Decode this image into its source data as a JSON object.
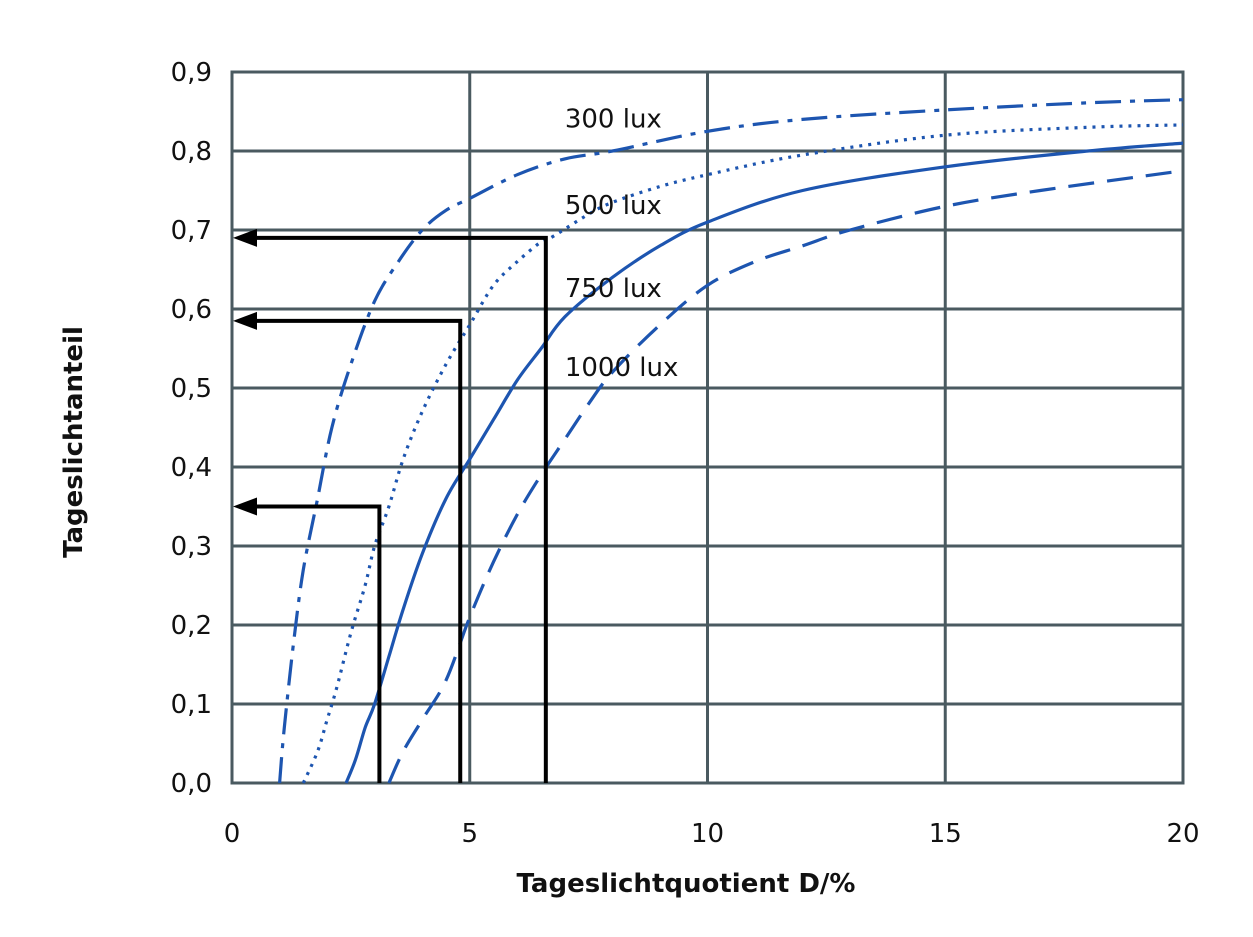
{
  "chart_data": {
    "type": "line",
    "title": "",
    "xlabel": "Tageslichtquotient D/%",
    "ylabel": "Tageslichtanteil",
    "xlim": [
      0,
      20
    ],
    "ylim": [
      0,
      0.9
    ],
    "x_ticks": [
      {
        "value": 0,
        "label": "0"
      },
      {
        "value": 5,
        "label": "5"
      },
      {
        "value": 10,
        "label": "10"
      },
      {
        "value": 15,
        "label": "15"
      },
      {
        "value": 20,
        "label": "20"
      }
    ],
    "y_ticks": [
      {
        "value": 0.0,
        "label": "0,0"
      },
      {
        "value": 0.1,
        "label": "0,1"
      },
      {
        "value": 0.2,
        "label": "0,2"
      },
      {
        "value": 0.3,
        "label": "0,3"
      },
      {
        "value": 0.4,
        "label": "0,4"
      },
      {
        "value": 0.5,
        "label": "0,5"
      },
      {
        "value": 0.6,
        "label": "0,6"
      },
      {
        "value": 0.7,
        "label": "0,7"
      },
      {
        "value": 0.8,
        "label": "0,8"
      },
      {
        "value": 0.9,
        "label": "0,9"
      }
    ],
    "grid": true,
    "series": [
      {
        "name": "300 lux",
        "style": "dashdot",
        "color": "#1d55b0",
        "label_at": [
          7,
          0.83
        ],
        "x": [
          1.0,
          1.1,
          1.3,
          1.5,
          1.8,
          2.1,
          2.5,
          3.0,
          3.5,
          4.0,
          4.5,
          5.0,
          6.0,
          7.0,
          8.0,
          10.0,
          12.0,
          15.0,
          18.0,
          20.0
        ],
        "y": [
          0.0,
          0.07,
          0.18,
          0.27,
          0.36,
          0.45,
          0.53,
          0.61,
          0.66,
          0.7,
          0.725,
          0.74,
          0.77,
          0.79,
          0.8,
          0.825,
          0.84,
          0.852,
          0.861,
          0.865
        ]
      },
      {
        "name": "500 lux",
        "style": "dotted",
        "color": "#1d55b0",
        "label_at": [
          7,
          0.72
        ],
        "x": [
          1.5,
          1.8,
          2.0,
          2.2,
          2.5,
          2.8,
          3.0,
          3.3,
          3.6,
          4.0,
          4.5,
          5.0,
          5.5,
          6.0,
          6.5,
          6.7,
          7.5,
          8.0,
          9.0,
          10.0,
          12.0,
          15.0,
          18.0,
          20.0
        ],
        "y": [
          0.0,
          0.04,
          0.08,
          0.12,
          0.19,
          0.25,
          0.3,
          0.35,
          0.41,
          0.47,
          0.53,
          0.58,
          0.63,
          0.66,
          0.685,
          0.69,
          0.72,
          0.735,
          0.755,
          0.77,
          0.795,
          0.82,
          0.83,
          0.833
        ]
      },
      {
        "name": "750 lux",
        "style": "solid",
        "color": "#1d55b0",
        "label_at": [
          7,
          0.615
        ],
        "x": [
          2.4,
          2.6,
          2.8,
          3.0,
          3.3,
          3.6,
          4.0,
          4.5,
          5.0,
          5.5,
          6.0,
          6.5,
          7.0,
          8.0,
          9.0,
          10.0,
          12.0,
          15.0,
          18.0,
          20.0
        ],
        "y": [
          0.0,
          0.03,
          0.07,
          0.1,
          0.16,
          0.22,
          0.29,
          0.36,
          0.41,
          0.46,
          0.51,
          0.55,
          0.59,
          0.64,
          0.68,
          0.71,
          0.75,
          0.78,
          0.8,
          0.81
        ]
      },
      {
        "name": "1000 lux",
        "style": "dashed",
        "color": "#1d55b0",
        "label_at": [
          7,
          0.515
        ],
        "x": [
          3.3,
          3.6,
          4.0,
          4.5,
          5.0,
          5.5,
          6.0,
          6.5,
          7.0,
          7.5,
          8.0,
          9.0,
          10.0,
          11.0,
          12.0,
          13.0,
          15.0,
          17.0,
          20.0
        ],
        "y": [
          0.0,
          0.04,
          0.08,
          0.13,
          0.21,
          0.28,
          0.34,
          0.39,
          0.435,
          0.48,
          0.52,
          0.58,
          0.63,
          0.66,
          0.68,
          0.7,
          0.73,
          0.75,
          0.775
        ]
      }
    ],
    "annotations": [
      {
        "type": "arrow",
        "from_x": 3.1,
        "level": 0.35
      },
      {
        "type": "arrow",
        "from_x": 4.8,
        "level": 0.585
      },
      {
        "type": "arrow",
        "from_x": 6.6,
        "level": 0.69
      }
    ],
    "colors": {
      "curve": "#1d55b0",
      "grid": "#4a5a60",
      "annotation": "#000000"
    }
  }
}
